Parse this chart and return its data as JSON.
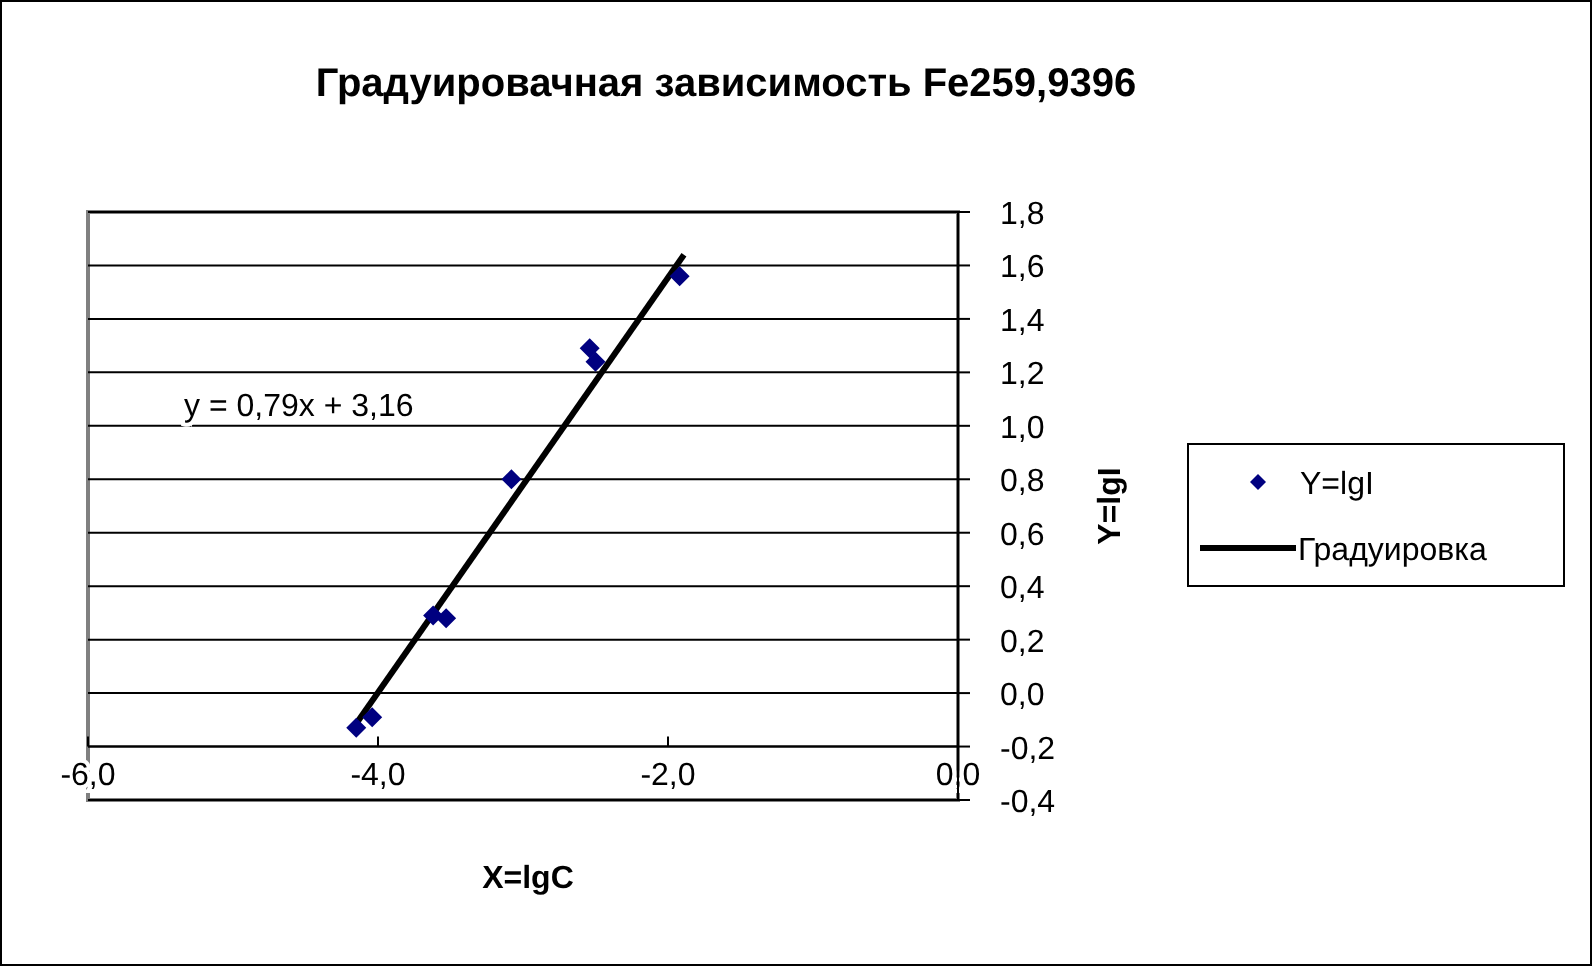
{
  "chart_data": {
    "type": "scatter",
    "title": "Градуировачная зависимость Fe259,9396",
    "xlabel": "X=lgC",
    "ylabel": "Y=lgI",
    "annotations": [
      "y = 0,79x + 3,16"
    ],
    "series": [
      {
        "name": "Y=lgI",
        "color": "#000080",
        "marker": "diamond",
        "x": [
          -4.15,
          -4.04,
          -3.62,
          -3.53,
          -3.08,
          -2.54,
          -2.5,
          -1.92
        ],
        "values": [
          -0.13,
          -0.09,
          0.29,
          0.28,
          0.8,
          1.29,
          1.24,
          1.56
        ]
      },
      {
        "name": "Градуировка",
        "type": "line",
        "color": "#000000",
        "marker": "none",
        "x": [
          -4.17,
          -1.89
        ],
        "values": [
          -0.13,
          1.64
        ]
      }
    ],
    "xlim": [
      -6,
      0
    ],
    "xticks": [
      {
        "value": -6,
        "label": "-6,0"
      },
      {
        "value": -4,
        "label": "-4,0"
      },
      {
        "value": -2,
        "label": "-2,0"
      },
      {
        "value": 0,
        "label": "0,0"
      }
    ],
    "ylim": [
      -0.4,
      1.8
    ],
    "yticks": [
      {
        "value": -0.4,
        "label": "-0,4"
      },
      {
        "value": -0.2,
        "label": "-0,2"
      },
      {
        "value": 0,
        "label": "0,0"
      },
      {
        "value": 0.2,
        "label": "0,2"
      },
      {
        "value": 0.4,
        "label": "0,4"
      },
      {
        "value": 0.6,
        "label": "0,6"
      },
      {
        "value": 0.8,
        "label": "0,8"
      },
      {
        "value": 1,
        "label": "1,0"
      },
      {
        "value": 1.2,
        "label": "1,2"
      },
      {
        "value": 1.4,
        "label": "1,4"
      },
      {
        "value": 1.6,
        "label": "1,6"
      },
      {
        "value": 1.8,
        "label": "1,8"
      }
    ],
    "grid": "y",
    "legend": "right"
  }
}
